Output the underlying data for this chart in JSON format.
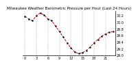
{
  "title": "Milwaukee Weather Barometric Pressure per Hour (Last 24 Hours)",
  "background_color": "#ffffff",
  "line_color": "#dd0000",
  "marker_color": "#000000",
  "grid_color": "#999999",
  "ylim": [
    29.0,
    30.35
  ],
  "yticks": [
    29.0,
    29.2,
    29.4,
    29.6,
    29.8,
    30.0,
    30.2
  ],
  "hours": [
    0,
    1,
    2,
    3,
    4,
    5,
    6,
    7,
    8,
    9,
    10,
    11,
    12,
    13,
    14,
    15,
    16,
    17,
    18,
    19,
    20,
    21,
    22,
    23
  ],
  "pressure": [
    30.18,
    30.1,
    30.05,
    30.2,
    30.28,
    30.22,
    30.1,
    30.05,
    29.88,
    29.72,
    29.55,
    29.38,
    29.22,
    29.1,
    29.05,
    29.08,
    29.15,
    29.25,
    29.38,
    29.48,
    29.58,
    29.65,
    29.7,
    29.72
  ],
  "title_fontsize": 4,
  "tick_fontsize": 3.5,
  "line_width": 0.7,
  "marker_size": 1.5
}
